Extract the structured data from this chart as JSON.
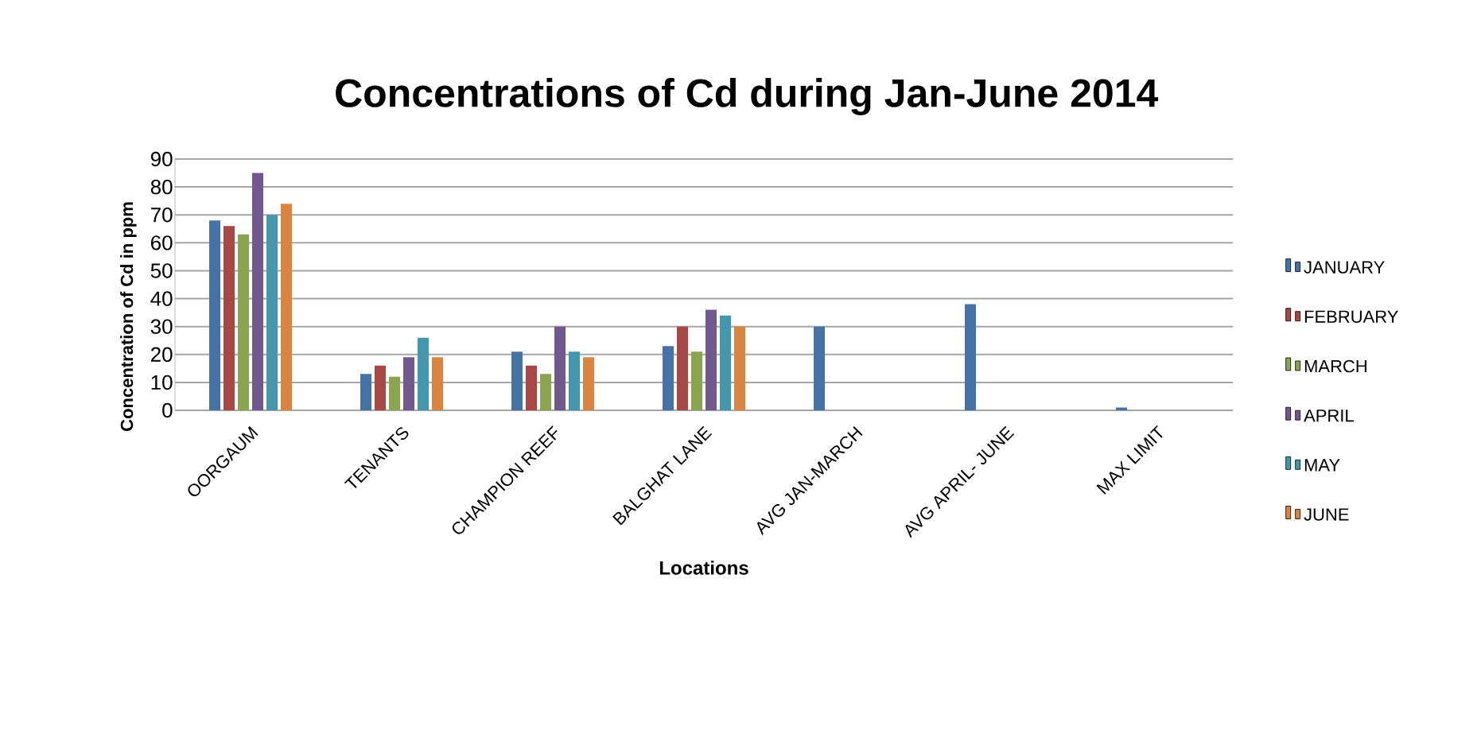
{
  "chart_data": {
    "type": "bar",
    "title": "Concentrations of Cd during Jan-June 2014",
    "xlabel": "Locations",
    "ylabel": "Concentration of Cd in ppm",
    "categories": [
      "OORGAUM",
      "TENANTS",
      "CHAMPION REEF",
      "BALGHAT LANE",
      "AVG JAN-MARCH",
      "AVG APRIL- JUNE",
      "MAX LIMIT"
    ],
    "series": [
      {
        "name": "JANUARY",
        "color": "#4572a7",
        "values": [
          68,
          13,
          21,
          23,
          30,
          38,
          1
        ]
      },
      {
        "name": "FEBRUARY",
        "color": "#aa4643",
        "values": [
          66,
          16,
          16,
          30,
          null,
          null,
          null
        ]
      },
      {
        "name": "MARCH",
        "color": "#89a54e",
        "values": [
          63,
          12,
          13,
          21,
          null,
          null,
          null
        ]
      },
      {
        "name": "APRIL",
        "color": "#71588f",
        "values": [
          85,
          19,
          30,
          36,
          null,
          null,
          null
        ]
      },
      {
        "name": "MAY",
        "color": "#4198af",
        "values": [
          70,
          26,
          21,
          34,
          null,
          null,
          null
        ]
      },
      {
        "name": "JUNE",
        "color": "#db843d",
        "values": [
          74,
          19,
          19,
          30,
          null,
          null,
          null
        ]
      }
    ],
    "ylim": [
      0,
      90
    ],
    "yticks": [
      0,
      10,
      20,
      30,
      40,
      50,
      60,
      70,
      80,
      90
    ],
    "grid": "y",
    "legend": "right"
  }
}
